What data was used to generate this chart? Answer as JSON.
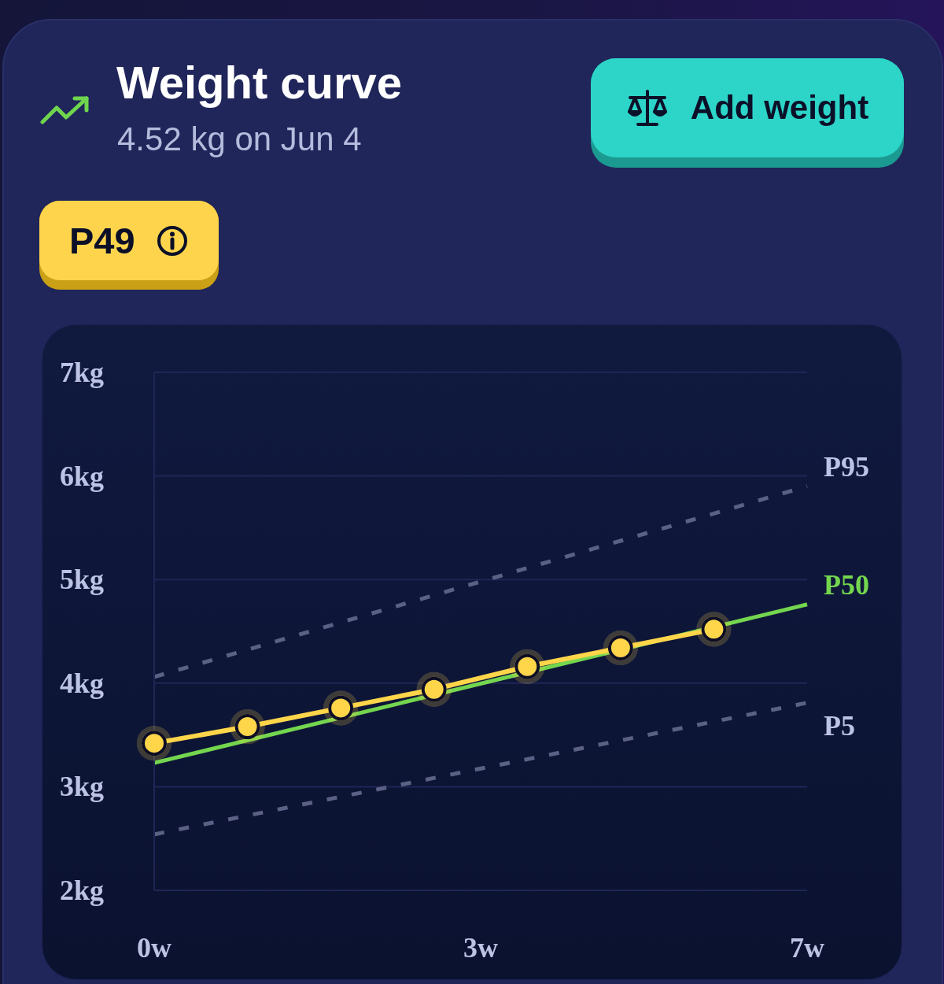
{
  "chart_data": {
    "type": "line",
    "title": "Weight curve",
    "subtitle": "4.52 kg on Jun 4",
    "annotations": [
      "Add weight",
      "P49"
    ],
    "xlim": [
      0,
      7
    ],
    "xticks": [
      {
        "value": 0,
        "label": "0w"
      },
      {
        "value": 3.5,
        "label": "3w"
      },
      {
        "value": 7,
        "label": "7w"
      }
    ],
    "ylim": [
      2,
      7
    ],
    "yticks": [
      {
        "value": 2,
        "label": "2kg"
      },
      {
        "value": 3,
        "label": "3kg"
      },
      {
        "value": 4,
        "label": "4kg"
      },
      {
        "value": 5,
        "label": "5kg"
      },
      {
        "value": 6,
        "label": "6kg"
      },
      {
        "value": 7,
        "label": "7kg"
      }
    ],
    "grid": "y",
    "series": [
      {
        "name": "P95",
        "color": "#5b6184",
        "line_style": "dashed",
        "marker": "none",
        "x": [
          0,
          7
        ],
        "values": [
          4.06,
          5.9
        ]
      },
      {
        "name": "P5",
        "color": "#5b6184",
        "line_style": "dashed",
        "marker": "none",
        "x": [
          0,
          7
        ],
        "values": [
          2.54,
          3.81
        ]
      },
      {
        "name": "P50",
        "color": "#74d64f",
        "line_style": "solid",
        "marker": "none",
        "x": [
          0,
          7
        ],
        "values": [
          3.23,
          4.76
        ]
      },
      {
        "color": "#ffd54a",
        "line_style": "solid",
        "marker": "circle",
        "x": [
          0,
          1,
          2,
          3,
          4,
          5,
          6
        ],
        "values": [
          3.42,
          3.58,
          3.76,
          3.94,
          4.16,
          4.34,
          4.52
        ]
      }
    ]
  }
}
